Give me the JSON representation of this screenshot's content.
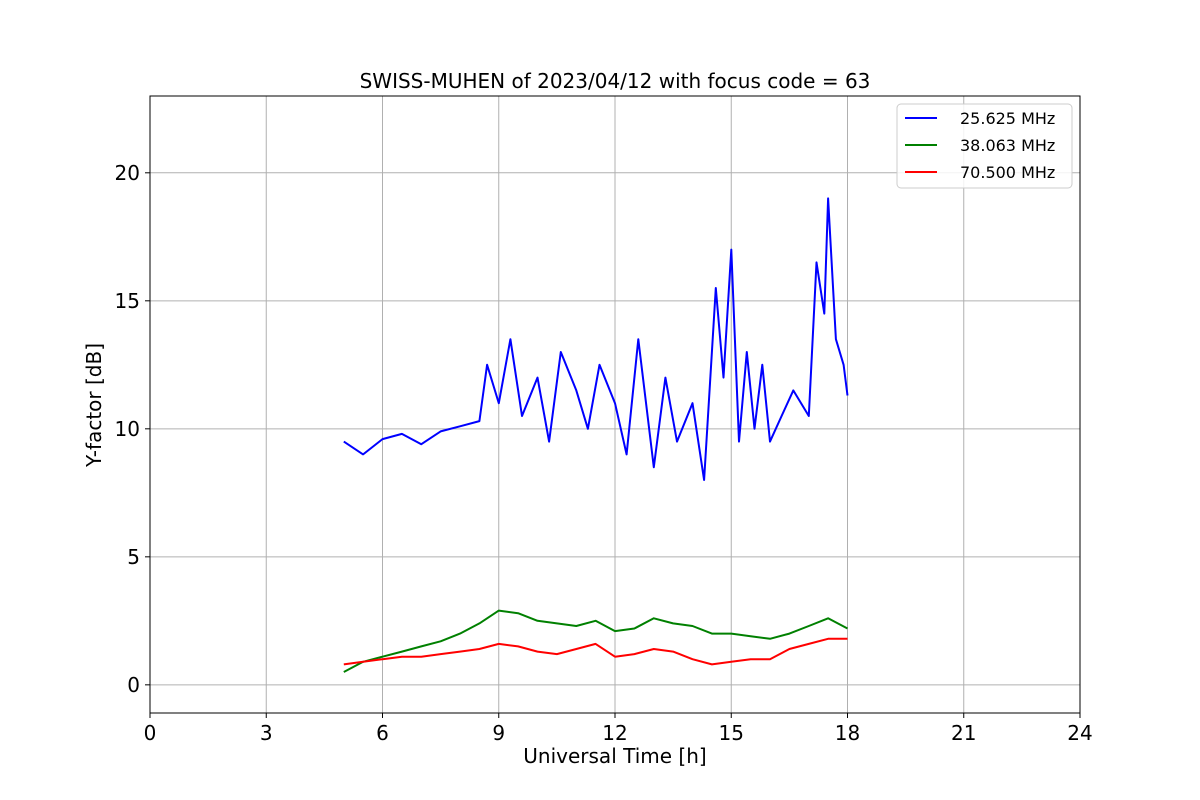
{
  "chart_data": {
    "type": "line",
    "title": "SWISS-MUHEN of 2023/04/12 with focus code = 63",
    "xlabel": "Universal Time [h]",
    "ylabel": "Y-factor [dB]",
    "xlim": [
      0,
      24
    ],
    "ylim": [
      -1.1,
      23
    ],
    "xticks": [
      0,
      3,
      6,
      9,
      12,
      15,
      18,
      21,
      24
    ],
    "yticks": [
      0,
      5,
      10,
      15,
      20
    ],
    "grid": true,
    "legend_position": "top-right",
    "series": [
      {
        "name": "25.625 MHz",
        "color": "#0000ff",
        "x": [
          5.0,
          5.5,
          6.0,
          6.5,
          7.0,
          7.5,
          8.0,
          8.5,
          8.7,
          9.0,
          9.3,
          9.6,
          10.0,
          10.3,
          10.6,
          11.0,
          11.3,
          11.6,
          12.0,
          12.3,
          12.6,
          13.0,
          13.3,
          13.6,
          14.0,
          14.3,
          14.6,
          14.8,
          15.0,
          15.2,
          15.4,
          15.6,
          15.8,
          16.0,
          16.3,
          16.6,
          17.0,
          17.2,
          17.4,
          17.5,
          17.7,
          17.9,
          18.0
        ],
        "y": [
          9.5,
          9.0,
          9.6,
          9.8,
          9.4,
          9.9,
          10.1,
          10.3,
          12.5,
          11.0,
          13.5,
          10.5,
          12.0,
          9.5,
          13.0,
          11.5,
          10.0,
          12.5,
          11.0,
          9.0,
          13.5,
          8.5,
          12.0,
          9.5,
          11.0,
          8.0,
          15.5,
          12.0,
          17.0,
          9.5,
          13.0,
          10.0,
          12.5,
          9.5,
          10.5,
          11.5,
          10.5,
          16.5,
          14.5,
          19.0,
          13.5,
          12.5,
          11.3
        ]
      },
      {
        "name": "38.063 MHz",
        "color": "#008000",
        "x": [
          5.0,
          5.5,
          6.0,
          6.5,
          7.0,
          7.5,
          8.0,
          8.5,
          9.0,
          9.5,
          10.0,
          10.5,
          11.0,
          11.5,
          12.0,
          12.5,
          13.0,
          13.5,
          14.0,
          14.5,
          15.0,
          15.5,
          16.0,
          16.5,
          17.0,
          17.5,
          18.0
        ],
        "y": [
          0.5,
          0.9,
          1.1,
          1.3,
          1.5,
          1.7,
          2.0,
          2.4,
          2.9,
          2.8,
          2.5,
          2.4,
          2.3,
          2.5,
          2.1,
          2.2,
          2.6,
          2.4,
          2.3,
          2.0,
          2.0,
          1.9,
          1.8,
          2.0,
          2.3,
          2.6,
          2.2
        ]
      },
      {
        "name": "70.500 MHz",
        "color": "#ff0000",
        "x": [
          5.0,
          5.5,
          6.0,
          6.5,
          7.0,
          7.5,
          8.0,
          8.5,
          9.0,
          9.5,
          10.0,
          10.5,
          11.0,
          11.5,
          12.0,
          12.5,
          13.0,
          13.5,
          14.0,
          14.5,
          15.0,
          15.5,
          16.0,
          16.5,
          17.0,
          17.5,
          18.0
        ],
        "y": [
          0.8,
          0.9,
          1.0,
          1.1,
          1.1,
          1.2,
          1.3,
          1.4,
          1.6,
          1.5,
          1.3,
          1.2,
          1.4,
          1.6,
          1.1,
          1.2,
          1.4,
          1.3,
          1.0,
          0.8,
          0.9,
          1.0,
          1.0,
          1.4,
          1.6,
          1.8,
          1.8
        ]
      }
    ]
  }
}
